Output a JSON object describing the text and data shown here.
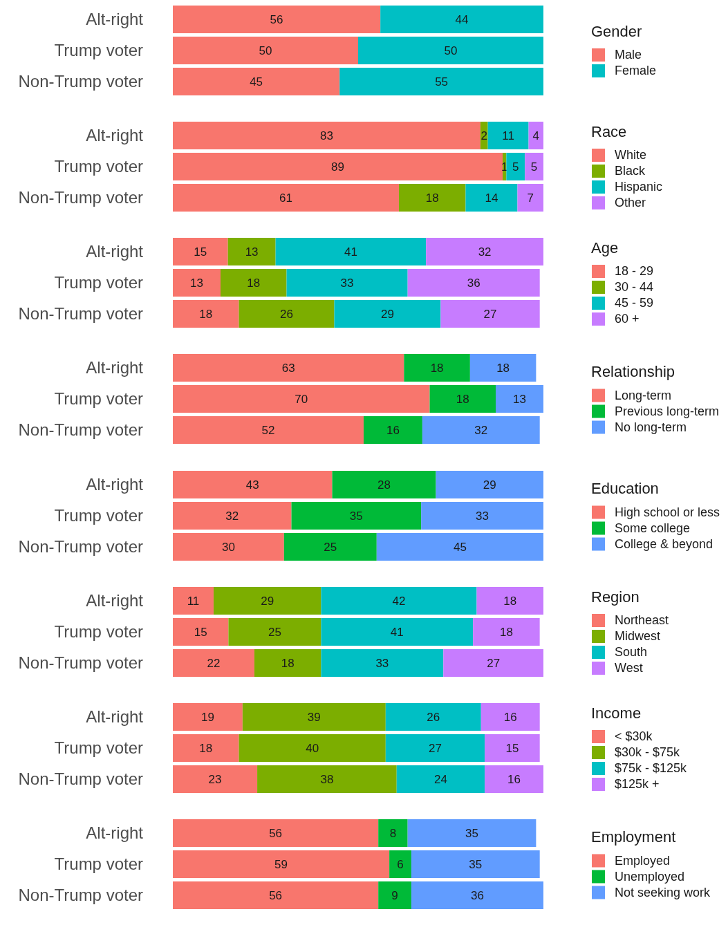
{
  "chart_data": [
    {
      "type": "bar",
      "orientation": "horizontal",
      "stacked": true,
      "data_labels": true,
      "legend": "right",
      "tick_labels": "y",
      "legend_title": "Gender",
      "categories": [
        "Alt-right",
        "Trump voter",
        "Non-Trump voter"
      ],
      "xlim": [
        0,
        100
      ],
      "series": [
        {
          "name": "Male",
          "color": "#f8766d",
          "values": [
            56,
            50,
            45
          ]
        },
        {
          "name": "Female",
          "color": "#00bfc4",
          "values": [
            44,
            50,
            55
          ]
        }
      ]
    },
    {
      "type": "bar",
      "orientation": "horizontal",
      "stacked": true,
      "data_labels": true,
      "legend": "right",
      "tick_labels": "y",
      "legend_title": "Race",
      "categories": [
        "Alt-right",
        "Trump voter",
        "Non-Trump voter"
      ],
      "xlim": [
        0,
        100
      ],
      "series": [
        {
          "name": "White",
          "color": "#f8766d",
          "values": [
            83,
            89,
            61
          ]
        },
        {
          "name": "Black",
          "color": "#7cae00",
          "values": [
            2,
            1,
            18
          ]
        },
        {
          "name": "Hispanic",
          "color": "#00bfc4",
          "values": [
            11,
            5,
            14
          ]
        },
        {
          "name": "Other",
          "color": "#c77cff",
          "values": [
            4,
            5,
            7
          ]
        }
      ]
    },
    {
      "type": "bar",
      "orientation": "horizontal",
      "stacked": true,
      "data_labels": true,
      "legend": "right",
      "tick_labels": "y",
      "legend_title": "Age",
      "categories": [
        "Alt-right",
        "Trump voter",
        "Non-Trump voter"
      ],
      "xlim": [
        0,
        101
      ],
      "series": [
        {
          "name": "18 - 29",
          "color": "#f8766d",
          "values": [
            15,
            13,
            18
          ]
        },
        {
          "name": "30 - 44",
          "color": "#7cae00",
          "values": [
            13,
            18,
            26
          ]
        },
        {
          "name": "45 - 59",
          "color": "#00bfc4",
          "values": [
            41,
            33,
            29
          ]
        },
        {
          "name": "60 +",
          "color": "#c77cff",
          "values": [
            32,
            36,
            27
          ]
        }
      ]
    },
    {
      "type": "bar",
      "orientation": "horizontal",
      "stacked": true,
      "data_labels": true,
      "legend": "right",
      "tick_labels": "y",
      "legend_title": "Relationship",
      "categories": [
        "Alt-right",
        "Trump voter",
        "Non-Trump voter"
      ],
      "xlim": [
        0,
        101
      ],
      "series": [
        {
          "name": "Long-term",
          "color": "#f8766d",
          "values": [
            63,
            70,
            52
          ]
        },
        {
          "name": "Previous long-term",
          "color": "#00ba38",
          "values": [
            18,
            18,
            16
          ]
        },
        {
          "name": "No long-term",
          "color": "#619cff",
          "values": [
            18,
            13,
            32
          ]
        }
      ]
    },
    {
      "type": "bar",
      "orientation": "horizontal",
      "stacked": true,
      "data_labels": true,
      "legend": "right",
      "tick_labels": "y",
      "legend_title": "Education",
      "categories": [
        "Alt-right",
        "Trump voter",
        "Non-Trump voter"
      ],
      "xlim": [
        0,
        100
      ],
      "series": [
        {
          "name": "High school or less",
          "color": "#f8766d",
          "values": [
            43,
            32,
            30
          ]
        },
        {
          "name": "Some college",
          "color": "#00ba38",
          "values": [
            28,
            35,
            25
          ]
        },
        {
          "name": "College & beyond",
          "color": "#619cff",
          "values": [
            29,
            33,
            45
          ]
        }
      ]
    },
    {
      "type": "bar",
      "orientation": "horizontal",
      "stacked": true,
      "data_labels": true,
      "legend": "right",
      "tick_labels": "y",
      "legend_title": "Region",
      "categories": [
        "Alt-right",
        "Trump voter",
        "Non-Trump voter"
      ],
      "xlim": [
        0,
        100
      ],
      "series": [
        {
          "name": "Northeast",
          "color": "#f8766d",
          "values": [
            11,
            15,
            22
          ]
        },
        {
          "name": "Midwest",
          "color": "#7cae00",
          "values": [
            29,
            25,
            18
          ]
        },
        {
          "name": "South",
          "color": "#00bfc4",
          "values": [
            42,
            41,
            33
          ]
        },
        {
          "name": "West",
          "color": "#c77cff",
          "values": [
            18,
            18,
            27
          ]
        }
      ]
    },
    {
      "type": "bar",
      "orientation": "horizontal",
      "stacked": true,
      "data_labels": true,
      "legend": "right",
      "tick_labels": "y",
      "legend_title": "Income",
      "categories": [
        "Alt-right",
        "Trump voter",
        "Non-Trump voter"
      ],
      "xlim": [
        0,
        101
      ],
      "series": [
        {
          "name": "< $30k",
          "color": "#f8766d",
          "values": [
            19,
            18,
            23
          ]
        },
        {
          "name": "$30k - $75k",
          "color": "#7cae00",
          "values": [
            39,
            40,
            38
          ]
        },
        {
          "name": "$75k - $125k",
          "color": "#00bfc4",
          "values": [
            26,
            27,
            24
          ]
        },
        {
          "name": "$125k +",
          "color": "#c77cff",
          "values": [
            16,
            15,
            16
          ]
        }
      ]
    },
    {
      "type": "bar",
      "orientation": "horizontal",
      "stacked": true,
      "data_labels": true,
      "legend": "right",
      "tick_labels": "y",
      "legend_title": "Employment",
      "categories": [
        "Alt-right",
        "Trump voter",
        "Non-Trump voter"
      ],
      "xlim": [
        0,
        101
      ],
      "series": [
        {
          "name": "Employed",
          "color": "#f8766d",
          "values": [
            56,
            59,
            56
          ]
        },
        {
          "name": "Unemployed",
          "color": "#00ba38",
          "values": [
            8,
            6,
            9
          ]
        },
        {
          "name": "Not seeking work",
          "color": "#619cff",
          "values": [
            35,
            35,
            36
          ]
        }
      ]
    }
  ]
}
